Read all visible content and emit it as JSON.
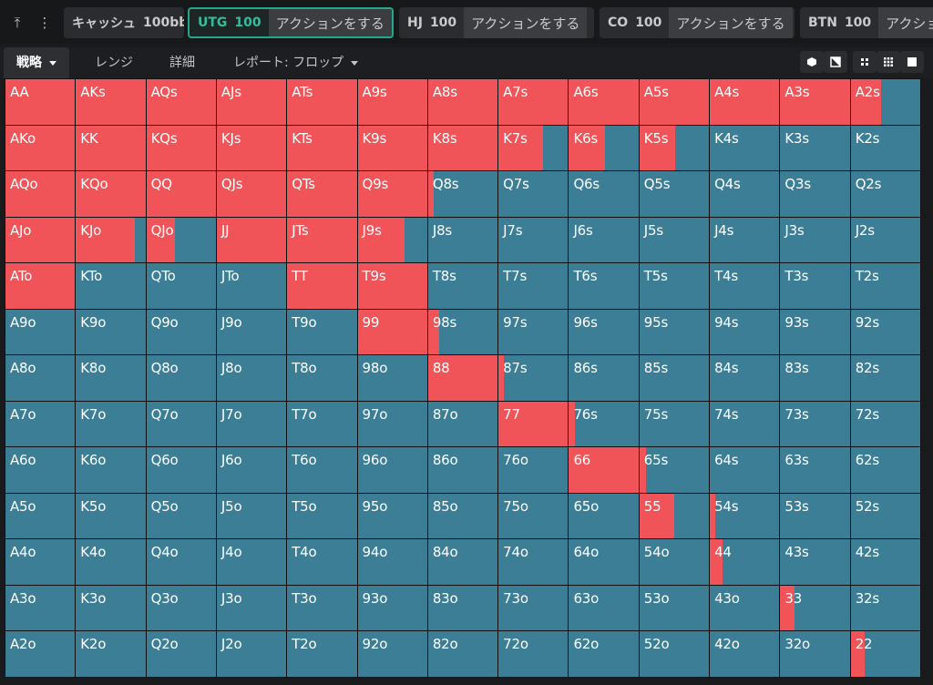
{
  "toolbar": {
    "tool_icon_1": "⤒",
    "tool_icon_2": "⋮"
  },
  "positions": [
    {
      "name": "キャッシュ",
      "stack": "100bb",
      "action": ""
    },
    {
      "name": "UTG",
      "stack": "100",
      "action": "アクションをする"
    },
    {
      "name": "HJ",
      "stack": "100",
      "action": "アクションをする"
    },
    {
      "name": "CO",
      "stack": "100",
      "action": "アクションをする"
    },
    {
      "name": "BTN",
      "stack": "100",
      "action": "アクショ"
    }
  ],
  "tabs": {
    "strategy": "戦略",
    "range": "レンジ",
    "detail": "詳細",
    "report": "レポート: フロップ"
  },
  "colors": {
    "raise": "#f05458",
    "fold": "#3b7e96",
    "active_border": "#23a88c"
  },
  "hands": [
    [
      "AA",
      "AKs",
      "AQs",
      "AJs",
      "ATs",
      "A9s",
      "A8s",
      "A7s",
      "A6s",
      "A5s",
      "A4s",
      "A3s",
      "A2s"
    ],
    [
      "AKo",
      "KK",
      "KQs",
      "KJs",
      "KTs",
      "K9s",
      "K8s",
      "K7s",
      "K6s",
      "K5s",
      "K4s",
      "K3s",
      "K2s"
    ],
    [
      "AQo",
      "KQo",
      "QQ",
      "QJs",
      "QTs",
      "Q9s",
      "Q8s",
      "Q7s",
      "Q6s",
      "Q5s",
      "Q4s",
      "Q3s",
      "Q2s"
    ],
    [
      "AJo",
      "KJo",
      "QJo",
      "JJ",
      "JTs",
      "J9s",
      "J8s",
      "J7s",
      "J6s",
      "J5s",
      "J4s",
      "J3s",
      "J2s"
    ],
    [
      "ATo",
      "KTo",
      "QTo",
      "JTo",
      "TT",
      "T9s",
      "T8s",
      "T7s",
      "T6s",
      "T5s",
      "T4s",
      "T3s",
      "T2s"
    ],
    [
      "A9o",
      "K9o",
      "Q9o",
      "J9o",
      "T9o",
      "99",
      "98s",
      "97s",
      "96s",
      "95s",
      "94s",
      "93s",
      "92s"
    ],
    [
      "A8o",
      "K8o",
      "Q8o",
      "J8o",
      "T8o",
      "98o",
      "88",
      "87s",
      "86s",
      "85s",
      "84s",
      "83s",
      "82s"
    ],
    [
      "A7o",
      "K7o",
      "Q7o",
      "J7o",
      "T7o",
      "97o",
      "87o",
      "77",
      "76s",
      "75s",
      "74s",
      "73s",
      "72s"
    ],
    [
      "A6o",
      "K6o",
      "Q6o",
      "J6o",
      "T6o",
      "96o",
      "86o",
      "76o",
      "66",
      "65s",
      "64s",
      "63s",
      "62s"
    ],
    [
      "A5o",
      "K5o",
      "Q5o",
      "J5o",
      "T5o",
      "95o",
      "85o",
      "75o",
      "65o",
      "55",
      "54s",
      "53s",
      "52s"
    ],
    [
      "A4o",
      "K4o",
      "Q4o",
      "J4o",
      "T4o",
      "94o",
      "84o",
      "74o",
      "64o",
      "54o",
      "44",
      "43s",
      "42s"
    ],
    [
      "A3o",
      "K3o",
      "Q3o",
      "J3o",
      "T3o",
      "93o",
      "83o",
      "73o",
      "63o",
      "53o",
      "43o",
      "33",
      "32s"
    ],
    [
      "A2o",
      "K2o",
      "Q2o",
      "J2o",
      "T2o",
      "92o",
      "82o",
      "72o",
      "62o",
      "52o",
      "42o",
      "32o",
      "22"
    ]
  ],
  "raise_freq": [
    [
      1,
      1,
      1,
      1,
      1,
      1,
      1,
      1,
      1,
      1,
      1,
      1,
      0.43
    ],
    [
      1,
      1,
      1,
      1,
      1,
      1,
      1,
      0.64,
      0.52,
      0.52,
      0,
      0,
      0
    ],
    [
      1,
      1,
      1,
      1,
      1,
      1,
      0.08,
      0,
      0,
      0,
      0,
      0,
      0
    ],
    [
      1,
      0.85,
      0.41,
      1,
      1,
      0.67,
      0,
      0,
      0,
      0,
      0,
      0,
      0
    ],
    [
      1,
      0,
      0,
      0,
      1,
      1,
      0,
      0,
      0,
      0,
      0,
      0,
      0
    ],
    [
      0,
      0,
      0,
      0,
      0,
      1,
      0.16,
      0,
      0,
      0,
      0,
      0,
      0
    ],
    [
      0,
      0,
      0,
      0,
      0,
      0,
      1,
      0.08,
      0,
      0,
      0,
      0,
      0
    ],
    [
      0,
      0,
      0,
      0,
      0,
      0,
      0,
      1,
      0.08,
      0,
      0,
      0,
      0
    ],
    [
      0,
      0,
      0,
      0,
      0,
      0,
      0,
      0,
      1,
      0.1,
      0,
      0,
      0
    ],
    [
      0,
      0,
      0,
      0,
      0,
      0,
      0,
      0,
      0,
      0.5,
      0.08,
      0,
      0
    ],
    [
      0,
      0,
      0,
      0,
      0,
      0,
      0,
      0,
      0,
      0,
      0.18,
      0,
      0
    ],
    [
      0,
      0,
      0,
      0,
      0,
      0,
      0,
      0,
      0,
      0,
      0,
      0.2,
      0
    ],
    [
      0,
      0,
      0,
      0,
      0,
      0,
      0,
      0,
      0,
      0,
      0,
      0,
      0.2
    ]
  ]
}
